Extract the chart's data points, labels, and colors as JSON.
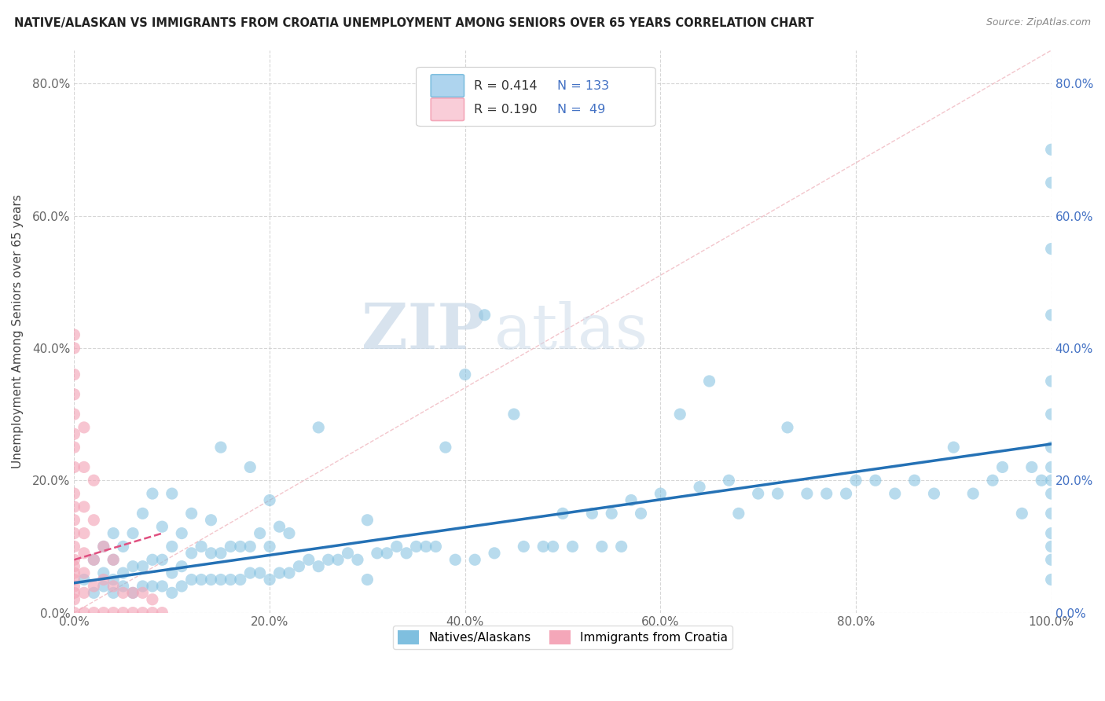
{
  "title": "NATIVE/ALASKAN VS IMMIGRANTS FROM CROATIA UNEMPLOYMENT AMONG SENIORS OVER 65 YEARS CORRELATION CHART",
  "source": "Source: ZipAtlas.com",
  "ylabel": "Unemployment Among Seniors over 65 years",
  "xlim": [
    0,
    1.0
  ],
  "ylim": [
    0,
    0.85
  ],
  "xticks": [
    0.0,
    0.2,
    0.4,
    0.6,
    0.8,
    1.0
  ],
  "xticklabels": [
    "0.0%",
    "20.0%",
    "40.0%",
    "60.0%",
    "80.0%",
    "100.0%"
  ],
  "yticks": [
    0.0,
    0.2,
    0.4,
    0.6,
    0.8
  ],
  "yticklabels": [
    "0.0%",
    "20.0%",
    "40.0%",
    "60.0%",
    "80.0%"
  ],
  "legend_r_blue": "R = 0.414",
  "legend_n_blue": "N = 133",
  "legend_r_pink": "R = 0.190",
  "legend_n_pink": "N =  49",
  "blue_color": "#7fbfdf",
  "blue_fill": "#aed4ee",
  "pink_color": "#f4a7b9",
  "pink_fill": "#f9cdd8",
  "trendline_blue_color": "#2471b5",
  "trendline_pink_color": "#e05080",
  "watermark_zip": "ZIP",
  "watermark_atlas": "atlas",
  "background_color": "#ffffff",
  "grid_color": "#cccccc",
  "blue_x": [
    0.01,
    0.02,
    0.02,
    0.03,
    0.03,
    0.03,
    0.04,
    0.04,
    0.04,
    0.04,
    0.05,
    0.05,
    0.05,
    0.06,
    0.06,
    0.06,
    0.07,
    0.07,
    0.07,
    0.08,
    0.08,
    0.08,
    0.09,
    0.09,
    0.09,
    0.1,
    0.1,
    0.1,
    0.1,
    0.11,
    0.11,
    0.11,
    0.12,
    0.12,
    0.12,
    0.13,
    0.13,
    0.14,
    0.14,
    0.14,
    0.15,
    0.15,
    0.15,
    0.16,
    0.16,
    0.17,
    0.17,
    0.18,
    0.18,
    0.18,
    0.19,
    0.19,
    0.2,
    0.2,
    0.2,
    0.21,
    0.21,
    0.22,
    0.22,
    0.23,
    0.24,
    0.25,
    0.25,
    0.26,
    0.27,
    0.28,
    0.29,
    0.3,
    0.3,
    0.31,
    0.32,
    0.33,
    0.34,
    0.35,
    0.36,
    0.37,
    0.38,
    0.39,
    0.4,
    0.41,
    0.42,
    0.43,
    0.45,
    0.46,
    0.48,
    0.49,
    0.5,
    0.51,
    0.53,
    0.54,
    0.55,
    0.56,
    0.57,
    0.58,
    0.6,
    0.62,
    0.64,
    0.65,
    0.67,
    0.68,
    0.7,
    0.72,
    0.73,
    0.75,
    0.77,
    0.79,
    0.8,
    0.82,
    0.84,
    0.86,
    0.88,
    0.9,
    0.92,
    0.94,
    0.95,
    0.97,
    0.98,
    0.99,
    1.0,
    1.0,
    1.0,
    1.0,
    1.0,
    1.0,
    1.0,
    1.0,
    1.0,
    1.0,
    1.0,
    1.0,
    1.0,
    1.0,
    1.0
  ],
  "blue_y": [
    0.05,
    0.03,
    0.08,
    0.04,
    0.06,
    0.1,
    0.03,
    0.05,
    0.08,
    0.12,
    0.04,
    0.06,
    0.1,
    0.03,
    0.07,
    0.12,
    0.04,
    0.07,
    0.15,
    0.04,
    0.08,
    0.18,
    0.04,
    0.08,
    0.13,
    0.03,
    0.06,
    0.1,
    0.18,
    0.04,
    0.07,
    0.12,
    0.05,
    0.09,
    0.15,
    0.05,
    0.1,
    0.05,
    0.09,
    0.14,
    0.05,
    0.09,
    0.25,
    0.05,
    0.1,
    0.05,
    0.1,
    0.06,
    0.1,
    0.22,
    0.06,
    0.12,
    0.05,
    0.1,
    0.17,
    0.06,
    0.13,
    0.06,
    0.12,
    0.07,
    0.08,
    0.07,
    0.28,
    0.08,
    0.08,
    0.09,
    0.08,
    0.05,
    0.14,
    0.09,
    0.09,
    0.1,
    0.09,
    0.1,
    0.1,
    0.1,
    0.25,
    0.08,
    0.36,
    0.08,
    0.45,
    0.09,
    0.3,
    0.1,
    0.1,
    0.1,
    0.15,
    0.1,
    0.15,
    0.1,
    0.15,
    0.1,
    0.17,
    0.15,
    0.18,
    0.3,
    0.19,
    0.35,
    0.2,
    0.15,
    0.18,
    0.18,
    0.28,
    0.18,
    0.18,
    0.18,
    0.2,
    0.2,
    0.18,
    0.2,
    0.18,
    0.25,
    0.18,
    0.2,
    0.22,
    0.15,
    0.22,
    0.2,
    0.05,
    0.08,
    0.1,
    0.12,
    0.15,
    0.18,
    0.2,
    0.22,
    0.25,
    0.3,
    0.35,
    0.45,
    0.55,
    0.65,
    0.7
  ],
  "pink_x": [
    0.0,
    0.0,
    0.0,
    0.0,
    0.0,
    0.0,
    0.0,
    0.0,
    0.0,
    0.0,
    0.0,
    0.0,
    0.0,
    0.0,
    0.0,
    0.0,
    0.0,
    0.0,
    0.0,
    0.0,
    0.0,
    0.01,
    0.01,
    0.01,
    0.01,
    0.01,
    0.01,
    0.01,
    0.01,
    0.02,
    0.02,
    0.02,
    0.02,
    0.02,
    0.03,
    0.03,
    0.03,
    0.04,
    0.04,
    0.04,
    0.05,
    0.05,
    0.06,
    0.06,
    0.07,
    0.07,
    0.08,
    0.08,
    0.09
  ],
  "pink_y": [
    0.0,
    0.02,
    0.03,
    0.04,
    0.05,
    0.06,
    0.07,
    0.08,
    0.1,
    0.12,
    0.14,
    0.16,
    0.18,
    0.22,
    0.25,
    0.27,
    0.3,
    0.33,
    0.36,
    0.4,
    0.42,
    0.0,
    0.03,
    0.06,
    0.09,
    0.12,
    0.16,
    0.22,
    0.28,
    0.0,
    0.04,
    0.08,
    0.14,
    0.2,
    0.0,
    0.05,
    0.1,
    0.0,
    0.04,
    0.08,
    0.0,
    0.03,
    0.0,
    0.03,
    0.0,
    0.03,
    0.0,
    0.02,
    0.0
  ],
  "blue_trend_x0": 0.0,
  "blue_trend_y0": 0.045,
  "blue_trend_x1": 1.0,
  "blue_trend_y1": 0.255,
  "pink_trend_x0": 0.0,
  "pink_trend_y0": 0.08,
  "pink_trend_x1": 0.09,
  "pink_trend_y1": 0.12
}
